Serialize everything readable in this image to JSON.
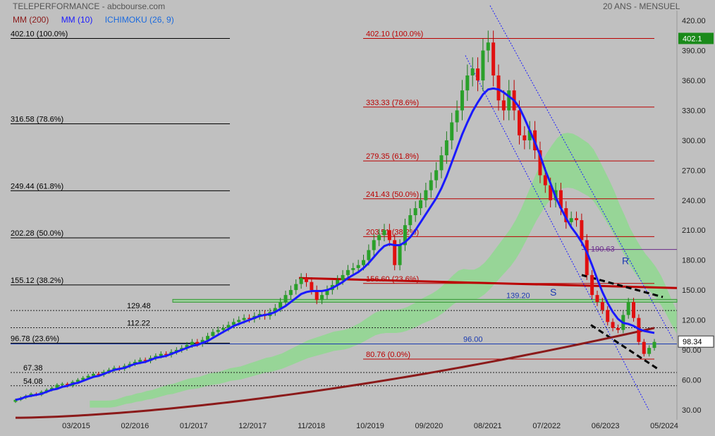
{
  "header": {
    "title": "TELEPERFORMANCE - abcbourse.com",
    "period": "20 ANS - MENSUEL"
  },
  "legend": [
    {
      "label": "MM (200)",
      "color": "#8b1a1a"
    },
    {
      "label": "MM (10)",
      "color": "#1a1aff"
    },
    {
      "label": "ICHIMOKU (26, 9)",
      "color": "#1a6adf"
    }
  ],
  "chart_data": {
    "type": "candlestick",
    "y_axis_ticks": [
      30,
      60,
      90,
      120,
      150,
      180,
      210,
      240,
      270,
      300,
      330,
      360,
      390,
      420
    ],
    "ylim": [
      20,
      430
    ],
    "x_tick_labels": [
      "03/2015",
      "02/2016",
      "01/2017",
      "12/2017",
      "11/2018",
      "10/2019",
      "09/2020",
      "08/2021",
      "07/2022",
      "06/2023",
      "05/2024"
    ],
    "last_price": "402.1",
    "current_price": "98.34",
    "left_fibonacci": [
      {
        "value": 402.1,
        "label": "402.10  (100.0%)"
      },
      {
        "value": 316.58,
        "label": "316.58  (78.6%)"
      },
      {
        "value": 249.44,
        "label": "249.44  (61.8%)"
      },
      {
        "value": 202.28,
        "label": "202.28  (50.0%)"
      },
      {
        "value": 155.12,
        "label": "155.12  (38.2%)"
      },
      {
        "value": 96.78,
        "label": "96.78  (23.6%)"
      }
    ],
    "right_fibonacci": [
      {
        "value": 402.1,
        "label": "402.10  (100.0%)"
      },
      {
        "value": 333.33,
        "label": "333.33  (78.6%)"
      },
      {
        "value": 279.35,
        "label": "279.35  (61.8%)"
      },
      {
        "value": 241.43,
        "label": "241.43  (50.0%)"
      },
      {
        "value": 203.51,
        "label": "203.51  (38.2%)"
      },
      {
        "value": 156.6,
        "label": "156.60  (23.6%)"
      },
      {
        "value": 80.76,
        "label": "80.76  (0.0%)"
      }
    ],
    "dotted_levels": [
      {
        "value": 129.48,
        "label": "129.48"
      },
      {
        "value": 112.22,
        "label": "112.22"
      },
      {
        "value": 67.38,
        "label": "67.38"
      },
      {
        "value": 54.08,
        "label": "54.08"
      }
    ],
    "support_lines": [
      {
        "value": 139.2,
        "label": "139.20"
      },
      {
        "value": 96.0,
        "label": "96.00"
      },
      {
        "value": 190.63,
        "label": "190.63"
      }
    ],
    "annotations": {
      "S": "S",
      "R": "R"
    },
    "candles_close": [
      40,
      42,
      44,
      46,
      45,
      48,
      50,
      52,
      55,
      56,
      54,
      58,
      60,
      62,
      64,
      66,
      65,
      68,
      70,
      72,
      71,
      74,
      76,
      78,
      80,
      79,
      82,
      84,
      86,
      85,
      88,
      90,
      92,
      95,
      98,
      96,
      100,
      104,
      108,
      110,
      112,
      115,
      118,
      120,
      122,
      121,
      124,
      126,
      124,
      128,
      132,
      138,
      145,
      150,
      156,
      162,
      158,
      150,
      140,
      145,
      150,
      155,
      160,
      165,
      170,
      172,
      175,
      180,
      190,
      200,
      205,
      210,
      200,
      175,
      195,
      215,
      225,
      232,
      240,
      250,
      260,
      270,
      285,
      300,
      318,
      330,
      350,
      365,
      372,
      360,
      390,
      398,
      365,
      340,
      330,
      350,
      330,
      305,
      300,
      310,
      290,
      265,
      255,
      240,
      250,
      232,
      218,
      222,
      220,
      200,
      165,
      145,
      138,
      130,
      118,
      112,
      110,
      125,
      138,
      122,
      98,
      86,
      92,
      98
    ],
    "ma10": [
      40,
      41,
      43,
      44,
      45,
      46,
      48,
      50,
      51,
      53,
      54,
      56,
      57,
      59,
      61,
      63,
      64,
      66,
      68,
      70,
      71,
      72,
      74,
      76,
      77,
      78,
      80,
      82,
      83,
      84,
      86,
      88,
      90,
      92,
      94,
      95,
      97,
      99,
      102,
      105,
      108,
      111,
      114,
      116,
      118,
      120,
      122,
      124,
      125,
      126,
      128,
      131,
      134,
      138,
      142,
      146,
      148,
      149,
      149,
      149,
      150,
      152,
      155,
      158,
      162,
      165,
      168,
      172,
      177,
      183,
      189,
      194,
      196,
      195,
      195,
      198,
      203,
      210,
      218,
      226,
      234,
      242,
      252,
      264,
      278,
      292,
      306,
      318,
      329,
      338,
      346,
      351,
      352,
      351,
      348,
      344,
      340,
      333,
      322,
      310,
      298,
      285,
      270,
      257,
      243,
      232,
      222,
      213,
      206,
      198,
      188,
      175,
      161,
      148,
      137,
      128,
      121,
      117,
      116,
      114,
      111,
      109,
      108,
      107
    ],
    "ma200_start": 22,
    "ma200_end": 112
  }
}
